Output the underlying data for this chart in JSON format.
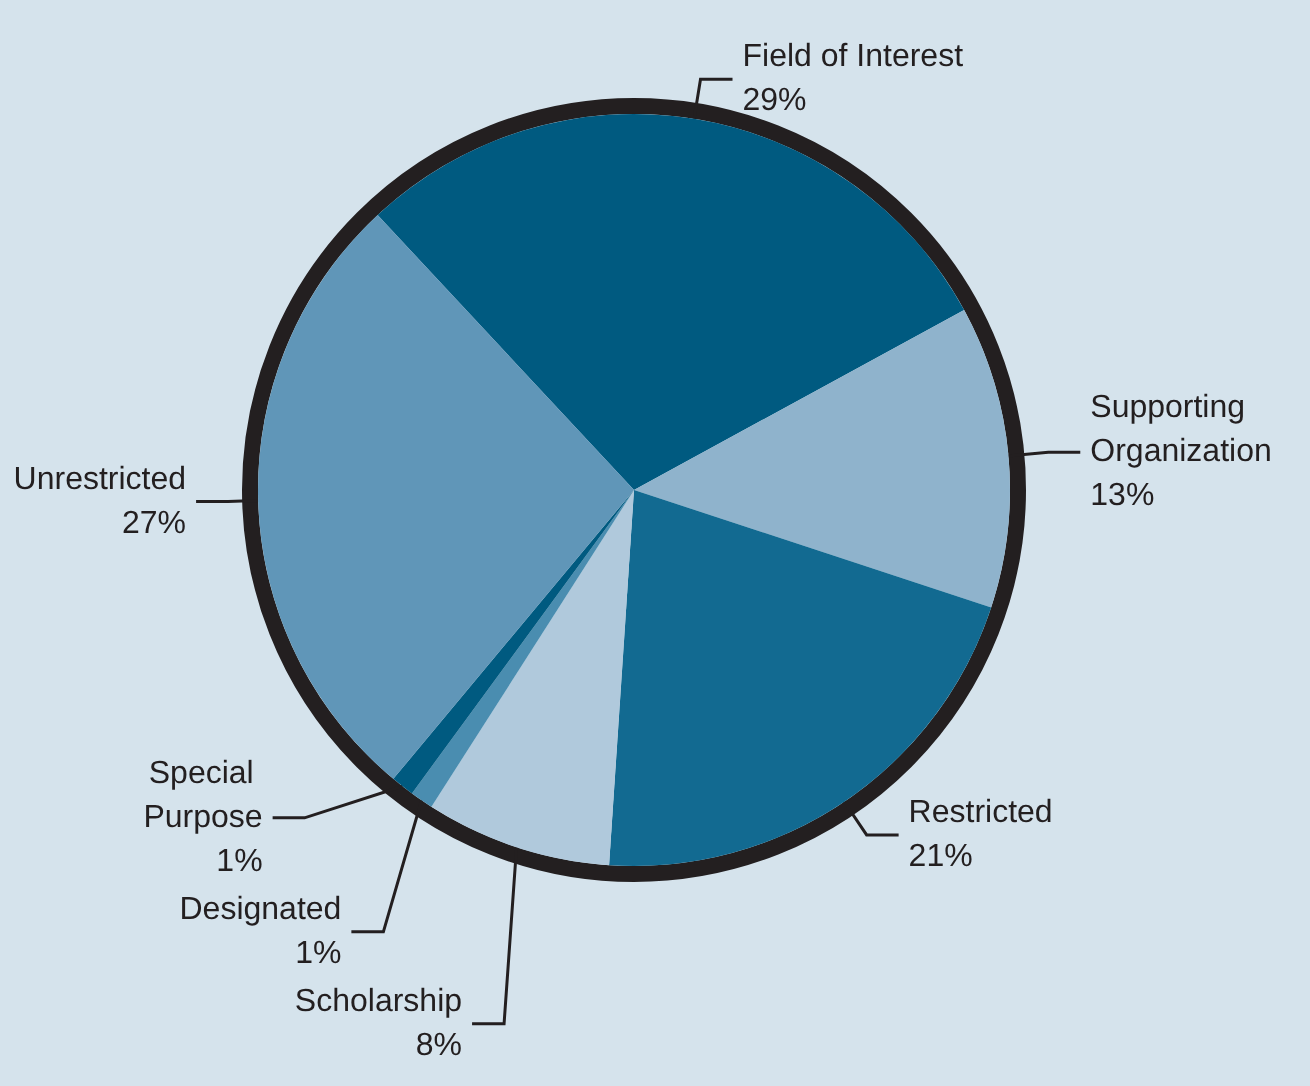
{
  "chart_data": {
    "type": "pie",
    "categories": [
      "Field of Interest",
      "Supporting Organization",
      "Restricted",
      "Scholarship",
      "Designated",
      "Special Purpose",
      "Unrestricted"
    ],
    "values": [
      29,
      13,
      21,
      8,
      1,
      1,
      27
    ],
    "value_labels": [
      "29%",
      "13%",
      "21%",
      "8%",
      "1%",
      "1%",
      "27%"
    ],
    "colors": [
      "#005a80",
      "#8fb3cc",
      "#126a91",
      "#b0c9dc",
      "#4a8db0",
      "#005a80",
      "#6096b8"
    ],
    "legend": false
  }
}
